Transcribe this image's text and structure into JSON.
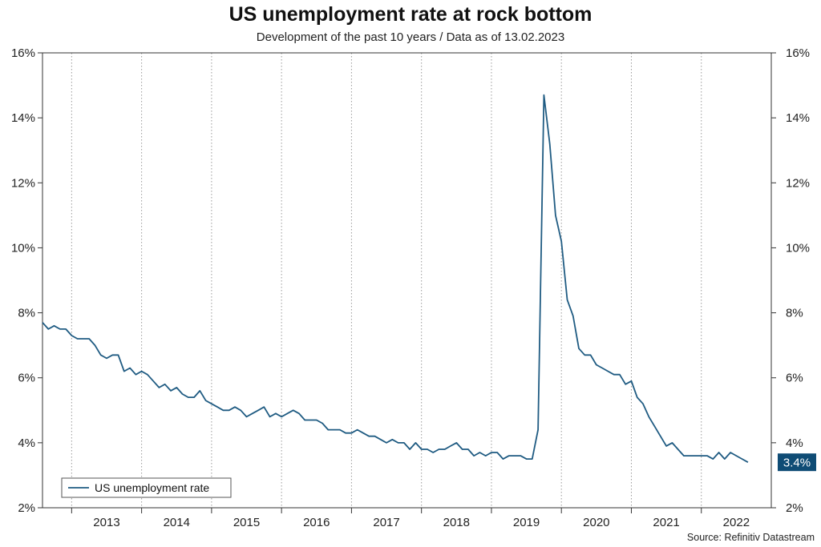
{
  "chart_data": {
    "type": "line",
    "title": "US unemployment rate at rock bottom",
    "subtitle": "Development of the past 10 years / Data as of 13.02.2023",
    "source": "Source: Refinitiv Datastream",
    "ylim": [
      2,
      16
    ],
    "yticks": [
      "2%",
      "4%",
      "6%",
      "8%",
      "10%",
      "12%",
      "14%",
      "16%"
    ],
    "xticks": [
      "2013",
      "2014",
      "2015",
      "2016",
      "2017",
      "2018",
      "2019",
      "2020",
      "2021",
      "2022"
    ],
    "xrange": [
      "2012-08",
      "2023-01"
    ],
    "grid": "vertical-dotted",
    "legend": "bottom-left",
    "last_value_label": "3.4%",
    "colors": {
      "line": "#1f5b82",
      "label_bg": "#0f4c75",
      "axis": "#333333"
    },
    "series": [
      {
        "name": "US unemployment rate",
        "start": "2012-08",
        "values": [
          7.7,
          7.5,
          7.6,
          7.5,
          7.5,
          7.3,
          7.2,
          7.2,
          7.2,
          7.0,
          6.7,
          6.6,
          6.7,
          6.7,
          6.2,
          6.3,
          6.1,
          6.2,
          6.1,
          5.9,
          5.7,
          5.8,
          5.6,
          5.7,
          5.5,
          5.4,
          5.4,
          5.6,
          5.3,
          5.2,
          5.1,
          5.0,
          5.0,
          5.1,
          5.0,
          4.8,
          4.9,
          5.0,
          5.1,
          4.8,
          4.9,
          4.8,
          4.9,
          5.0,
          4.9,
          4.7,
          4.7,
          4.7,
          4.6,
          4.4,
          4.4,
          4.4,
          4.3,
          4.3,
          4.4,
          4.3,
          4.2,
          4.2,
          4.1,
          4.0,
          4.1,
          4.0,
          4.0,
          3.8,
          4.0,
          3.8,
          3.8,
          3.7,
          3.8,
          3.8,
          3.9,
          4.0,
          3.8,
          3.8,
          3.6,
          3.7,
          3.6,
          3.7,
          3.7,
          3.5,
          3.6,
          3.6,
          3.6,
          3.5,
          3.5,
          4.4,
          14.7,
          13.2,
          11.0,
          10.2,
          8.4,
          7.9,
          6.9,
          6.7,
          6.7,
          6.4,
          6.3,
          6.2,
          6.1,
          6.1,
          5.8,
          5.9,
          5.4,
          5.2,
          4.8,
          4.5,
          4.2,
          3.9,
          4.0,
          3.8,
          3.6,
          3.6,
          3.6,
          3.6,
          3.6,
          3.5,
          3.7,
          3.5,
          3.7,
          3.6,
          3.5,
          3.4
        ]
      }
    ]
  }
}
